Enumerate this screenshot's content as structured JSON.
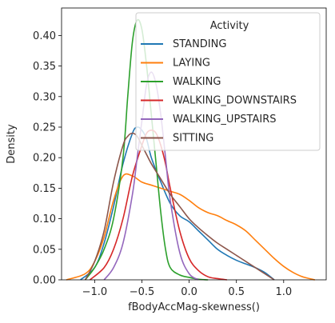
{
  "chart_data": {
    "type": "line",
    "xlabel": "fBodyAccMag-skewness()",
    "ylabel": "Density",
    "xlim": [
      -1.35,
      1.45
    ],
    "ylim": [
      0,
      0.445
    ],
    "xticks": [
      -1.0,
      -0.5,
      0.0,
      0.5,
      1.0
    ],
    "xtick_labels": [
      "−1.0",
      "−0.5",
      "0.0",
      "0.5",
      "1.0"
    ],
    "yticks": [
      0.0,
      0.05,
      0.1,
      0.15,
      0.2,
      0.25,
      0.3,
      0.35,
      0.4
    ],
    "ytick_labels": [
      "0.00",
      "0.05",
      "0.10",
      "0.15",
      "0.20",
      "0.25",
      "0.30",
      "0.35",
      "0.40"
    ],
    "grid": false,
    "legend": {
      "title": "Activity",
      "placement": "top-right"
    },
    "series": [
      {
        "name": "STANDING",
        "color": "#1f77b4",
        "x": [
          -1.15,
          -1.0,
          -0.9,
          -0.8,
          -0.7,
          -0.6,
          -0.55,
          -0.5,
          -0.45,
          -0.4,
          -0.3,
          -0.2,
          -0.1,
          0.0,
          0.1,
          0.2,
          0.3,
          0.4,
          0.5,
          0.6,
          0.7,
          0.8,
          0.9
        ],
        "y": [
          0.0,
          0.02,
          0.06,
          0.12,
          0.19,
          0.24,
          0.25,
          0.245,
          0.23,
          0.2,
          0.16,
          0.125,
          0.105,
          0.095,
          0.08,
          0.065,
          0.05,
          0.04,
          0.032,
          0.026,
          0.02,
          0.012,
          0.0
        ]
      },
      {
        "name": "LAYING",
        "color": "#ff7f0e",
        "x": [
          -1.3,
          -1.1,
          -1.0,
          -0.9,
          -0.8,
          -0.7,
          -0.6,
          -0.5,
          -0.4,
          -0.3,
          -0.2,
          -0.1,
          0.0,
          0.1,
          0.2,
          0.3,
          0.4,
          0.5,
          0.6,
          0.7,
          0.8,
          0.9,
          1.0,
          1.1,
          1.2,
          1.33
        ],
        "y": [
          0.0,
          0.01,
          0.03,
          0.07,
          0.13,
          0.17,
          0.17,
          0.16,
          0.155,
          0.15,
          0.145,
          0.14,
          0.13,
          0.118,
          0.11,
          0.105,
          0.097,
          0.09,
          0.08,
          0.065,
          0.05,
          0.035,
          0.022,
          0.012,
          0.005,
          0.0
        ]
      },
      {
        "name": "WALKING",
        "color": "#2ca02c",
        "x": [
          -1.1,
          -1.0,
          -0.9,
          -0.8,
          -0.7,
          -0.65,
          -0.6,
          -0.55,
          -0.5,
          -0.45,
          -0.4,
          -0.35,
          -0.3,
          -0.25,
          -0.2,
          -0.1,
          0.0,
          0.1,
          0.2
        ],
        "y": [
          0.0,
          0.02,
          0.05,
          0.1,
          0.2,
          0.3,
          0.39,
          0.425,
          0.41,
          0.35,
          0.27,
          0.19,
          0.11,
          0.05,
          0.02,
          0.008,
          0.004,
          0.001,
          0.0
        ]
      },
      {
        "name": "WALKING_DOWNSTAIRS",
        "color": "#d62728",
        "x": [
          -1.05,
          -0.9,
          -0.8,
          -0.7,
          -0.6,
          -0.5,
          -0.45,
          -0.4,
          -0.35,
          -0.3,
          -0.25,
          -0.2,
          -0.1,
          0.0,
          0.1,
          0.2,
          0.3,
          0.4
        ],
        "y": [
          0.0,
          0.02,
          0.05,
          0.1,
          0.17,
          0.22,
          0.24,
          0.245,
          0.24,
          0.22,
          0.19,
          0.15,
          0.08,
          0.035,
          0.015,
          0.005,
          0.002,
          0.0
        ]
      },
      {
        "name": "WALKING_UPSTAIRS",
        "color": "#9467bd",
        "x": [
          -0.9,
          -0.8,
          -0.7,
          -0.6,
          -0.55,
          -0.5,
          -0.45,
          -0.4,
          -0.35,
          -0.3,
          -0.25,
          -0.2,
          -0.1,
          0.0,
          0.1
        ],
        "y": [
          0.0,
          0.02,
          0.06,
          0.14,
          0.2,
          0.26,
          0.32,
          0.34,
          0.32,
          0.27,
          0.2,
          0.13,
          0.045,
          0.01,
          0.0
        ]
      },
      {
        "name": "SITTING",
        "color": "#8c564b",
        "x": [
          -1.1,
          -1.0,
          -0.9,
          -0.8,
          -0.7,
          -0.65,
          -0.6,
          -0.55,
          -0.5,
          -0.45,
          -0.4,
          -0.3,
          -0.2,
          -0.1,
          0.0,
          0.1,
          0.2,
          0.3,
          0.4,
          0.5,
          0.6,
          0.7,
          0.8,
          0.9
        ],
        "y": [
          0.0,
          0.03,
          0.08,
          0.16,
          0.22,
          0.235,
          0.24,
          0.235,
          0.22,
          0.205,
          0.19,
          0.165,
          0.14,
          0.12,
          0.1,
          0.085,
          0.072,
          0.06,
          0.05,
          0.04,
          0.03,
          0.02,
          0.01,
          0.0
        ]
      }
    ]
  }
}
